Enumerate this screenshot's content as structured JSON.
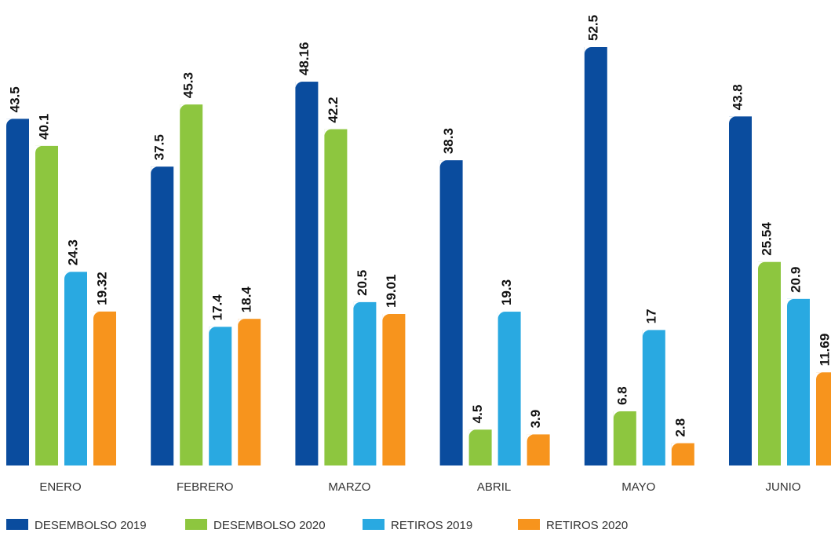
{
  "chart_data": {
    "type": "bar",
    "categories": [
      "ENERO",
      "FEBRERO",
      "MARZO",
      "ABRIL",
      "MAYO",
      "JUNIO"
    ],
    "series": [
      {
        "name": "DESEMBOLSO 2019",
        "color": "#0a4c9e",
        "values": [
          43.5,
          37.5,
          48.16,
          38.3,
          52.5,
          43.8
        ]
      },
      {
        "name": "DESEMBOLSO 2020",
        "color": "#8dc63f",
        "values": [
          40.1,
          45.3,
          42.2,
          4.5,
          6.8,
          25.54
        ]
      },
      {
        "name": "RETIROS 2019",
        "color": "#29a9e1",
        "values": [
          24.3,
          17.4,
          20.5,
          19.3,
          17,
          20.9
        ]
      },
      {
        "name": "RETIROS 2020",
        "color": "#f7941d",
        "values": [
          19.32,
          18.4,
          19.01,
          3.9,
          2.8,
          11.69
        ]
      }
    ],
    "ylim": [
      0,
      52.5
    ]
  }
}
